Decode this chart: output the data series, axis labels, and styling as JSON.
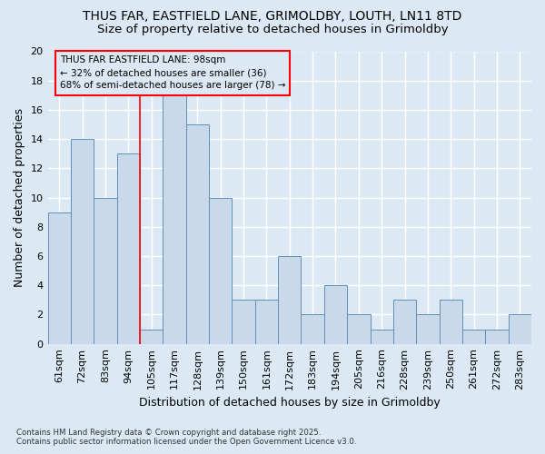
{
  "title_line1": "THUS FAR, EASTFIELD LANE, GRIMOLDBY, LOUTH, LN11 8TD",
  "title_line2": "Size of property relative to detached houses in Grimoldby",
  "xlabel": "Distribution of detached houses by size in Grimoldby",
  "ylabel": "Number of detached properties",
  "categories": [
    "61sqm",
    "72sqm",
    "83sqm",
    "94sqm",
    "105sqm",
    "117sqm",
    "128sqm",
    "139sqm",
    "150sqm",
    "161sqm",
    "172sqm",
    "183sqm",
    "194sqm",
    "205sqm",
    "216sqm",
    "228sqm",
    "239sqm",
    "250sqm",
    "261sqm",
    "272sqm",
    "283sqm"
  ],
  "values": [
    9,
    14,
    10,
    13,
    1,
    17,
    15,
    10,
    3,
    3,
    6,
    2,
    4,
    2,
    1,
    3,
    2,
    3,
    1,
    1,
    2
  ],
  "bar_color": "#cad9ea",
  "bar_edge_color": "#6090b8",
  "background_color": "#dce9f5",
  "grid_color": "#ffffff",
  "ylim": [
    0,
    20
  ],
  "yticks": [
    0,
    2,
    4,
    6,
    8,
    10,
    12,
    14,
    16,
    18,
    20
  ],
  "redline_x": 3.5,
  "annotation_line1": "THUS FAR EASTFIELD LANE: 98sqm",
  "annotation_line2": "← 32% of detached houses are smaller (36)",
  "annotation_line3": "68% of semi-detached houses are larger (78) →",
  "footer_line1": "Contains HM Land Registry data © Crown copyright and database right 2025.",
  "footer_line2": "Contains public sector information licensed under the Open Government Licence v3.0."
}
